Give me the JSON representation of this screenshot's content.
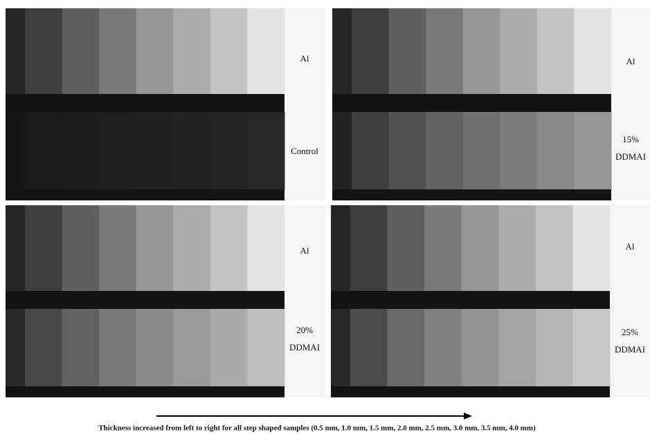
{
  "panels": [
    {
      "top": "Al",
      "bottom": [
        "Control"
      ]
    },
    {
      "top": "Al",
      "bottom": [
        "15%",
        "DDMAI"
      ]
    },
    {
      "top": "Al",
      "bottom": [
        "20%",
        "DDMAI"
      ]
    },
    {
      "top": "Al",
      "bottom": [
        "25%",
        "DDMAI"
      ]
    }
  ],
  "caption": "Thickness increased from left to right for all step shaped samples (0.5 mm, 1.0 mm, 1.5 mm, 2.0 mm, 2.5 mm, 3.0 mm, 3.5 mm, 4.0 mm)"
}
